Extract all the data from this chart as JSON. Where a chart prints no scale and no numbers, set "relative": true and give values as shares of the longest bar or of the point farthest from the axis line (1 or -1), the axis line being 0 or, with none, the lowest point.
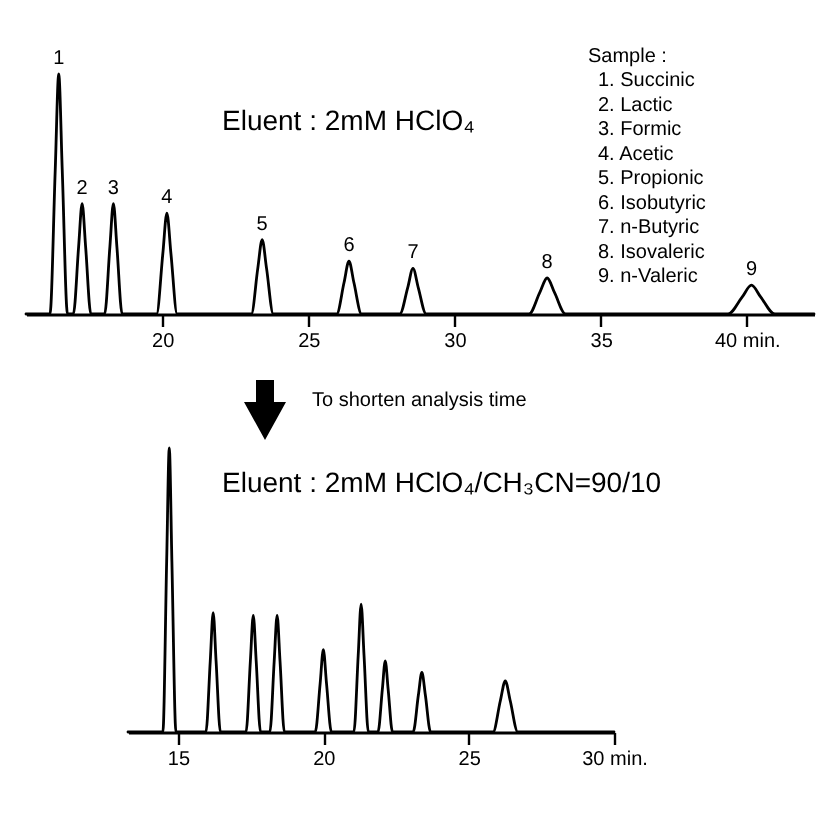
{
  "chart_data": [
    {
      "type": "line",
      "relative": true,
      "color": "#000000",
      "x": [
        15.34,
        16.16,
        16.34,
        16.46,
        16.58,
        16.76,
        16.96,
        17.14,
        17.26,
        17.38,
        17.56,
        18.03,
        18.21,
        18.33,
        18.45,
        18.63,
        19.81,
        20.02,
        20.16,
        20.3,
        20.51,
        23.05,
        23.27,
        23.42,
        23.57,
        23.8,
        25.97,
        26.22,
        26.39,
        26.56,
        26.82,
        28.13,
        28.4,
        28.58,
        28.76,
        29.03,
        32.55,
        32.92,
        33.17,
        33.42,
        33.8,
        39.36,
        39.84,
        40.16,
        40.48,
        40.96,
        42.3
      ],
      "values": [
        0,
        0,
        0.6,
        1,
        0.6,
        0,
        0,
        0.28,
        0.46,
        0.28,
        0,
        0,
        0.28,
        0.46,
        0.28,
        0,
        0,
        0.25,
        0.42,
        0.25,
        0,
        0,
        0.19,
        0.31,
        0.19,
        0,
        0,
        0.13,
        0.22,
        0.13,
        0,
        0,
        0.11,
        0.19,
        0.11,
        0,
        0,
        0.09,
        0.15,
        0.09,
        0,
        0,
        0.07,
        0.12,
        0.07,
        0,
        0
      ],
      "xlim": [
        15.34,
        42.3
      ],
      "xticks": [
        20,
        25,
        30,
        35,
        {
          "value": 40,
          "label": "40 min."
        }
      ],
      "annotations": [
        "Eluent : 2mM HClO₄",
        "Sample :",
        "1. Succinic",
        "2. Lactic",
        "3. Formic",
        "4. Acetic",
        "5. Propionic",
        "6. Isobutyric",
        "7. n-Butyric",
        "8. Isovaleric",
        "9. n-Valeric",
        "To shorten analysis time",
        {
          "text": "1",
          "x": 16.46,
          "y": 1
        },
        {
          "text": "2",
          "x": 17.26,
          "y": 0.46
        },
        {
          "text": "3",
          "x": 18.33,
          "y": 0.46
        },
        {
          "text": "4",
          "x": 20.16,
          "y": 0.42
        },
        {
          "text": "5",
          "x": 23.42,
          "y": 0.31
        },
        {
          "text": "6",
          "x": 26.39,
          "y": 0.22
        },
        {
          "text": "7",
          "x": 28.58,
          "y": 0.19
        },
        {
          "text": "8",
          "x": 33.17,
          "y": 0.15
        },
        {
          "text": "9",
          "x": 40.16,
          "y": 0.12
        }
      ]
    },
    {
      "type": "line",
      "relative": true,
      "color": "#000000",
      "x": [
        13.28,
        14.48,
        14.61,
        14.7,
        14.79,
        14.93,
        15.96,
        16.11,
        16.21,
        16.31,
        16.46,
        17.34,
        17.49,
        17.59,
        17.69,
        17.84,
        18.16,
        18.31,
        18.41,
        18.51,
        18.66,
        19.72,
        19.89,
        20.0,
        20.11,
        20.28,
        21.05,
        21.2,
        21.3,
        21.4,
        21.55,
        21.88,
        22.03,
        22.13,
        22.23,
        22.38,
        23.09,
        23.27,
        23.39,
        23.51,
        23.69,
        25.84,
        26.09,
        26.26,
        26.43,
        26.69,
        30
      ],
      "values": [
        0,
        0,
        0.6,
        1,
        0.6,
        0,
        0,
        0.25,
        0.42,
        0.25,
        0,
        0,
        0.25,
        0.41,
        0.25,
        0,
        0,
        0.25,
        0.41,
        0.25,
        0,
        0,
        0.17,
        0.29,
        0.17,
        0,
        0,
        0.27,
        0.45,
        0.27,
        0,
        0,
        0.15,
        0.25,
        0.15,
        0,
        0,
        0.13,
        0.21,
        0.13,
        0,
        0,
        0.11,
        0.18,
        0.11,
        0,
        0
      ],
      "xlim": [
        13.28,
        30
      ],
      "xticks": [
        15,
        20,
        25,
        {
          "value": 30,
          "label": "30 min."
        }
      ],
      "annotations": [
        "Eluent : 2mM HClO₄/CH₃CN=90/10"
      ]
    }
  ]
}
